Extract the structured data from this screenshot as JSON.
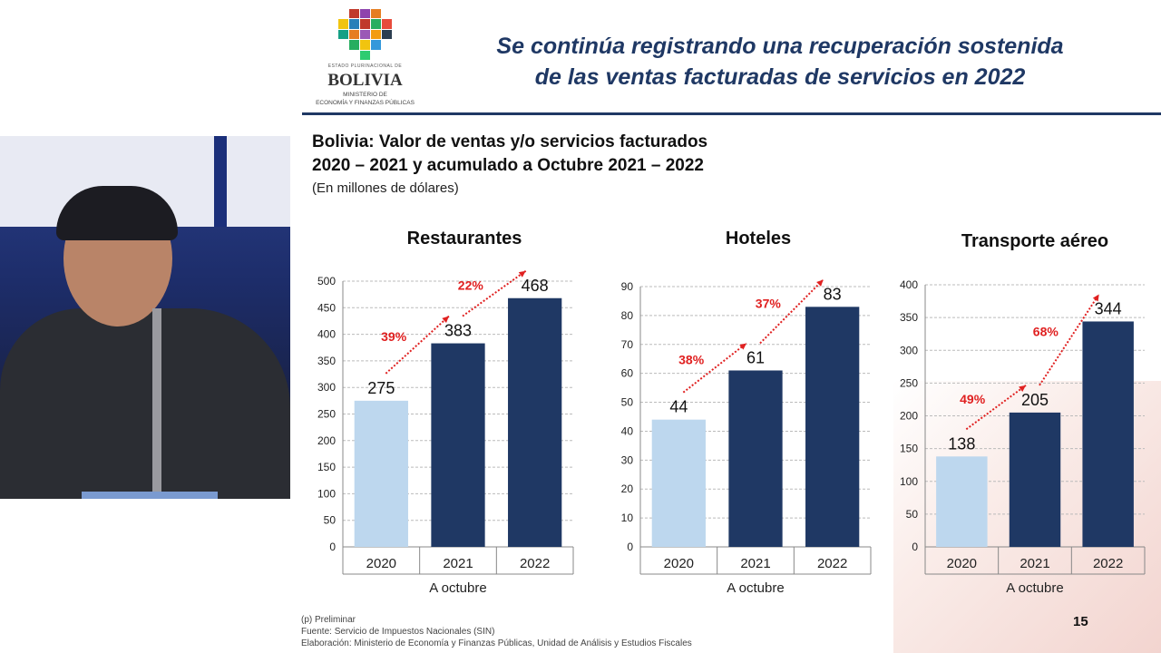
{
  "header": {
    "logo": {
      "state": "ESTADO PLURINACIONAL DE",
      "name": "BOLIVIA",
      "ministry_line1": "MINISTERIO DE",
      "ministry_line2": "ECONOMÍA Y FINANZAS PÚBLICAS"
    },
    "title_line1": "Se continúa registrando una recuperación sostenida",
    "title_line2": "de las ventas facturadas de servicios en 2022"
  },
  "slide": {
    "subtitle_line1": "Bolivia: Valor de ventas y/o servicios facturados",
    "subtitle_line2": "2020 – 2021 y acumulado a Octubre 2021 – 2022",
    "unit": "(En millones de dólares)",
    "footer": [
      "(p) Preliminar",
      "Fuente: Servicio de Impuestos Nacionales (SIN)",
      "Elaboración: Ministerio de Economía  y Finanzas Públicas, Unidad de Análisis y Estudios Fiscales"
    ],
    "page_number": "15"
  },
  "colors": {
    "bar_2020": "#bdd7ee",
    "bar_other": "#1f3864",
    "growth": "#e02020",
    "title": "#1f3864"
  },
  "chart_data": [
    {
      "type": "bar",
      "title": "Restaurantes",
      "categories": [
        "2020",
        "2021",
        "2022"
      ],
      "values": [
        275,
        383,
        468
      ],
      "data_labels": [
        "275",
        "383",
        "468"
      ],
      "growth_labels": [
        "39%",
        "22%"
      ],
      "group_label": "A octubre",
      "ylim": [
        0,
        500
      ],
      "yticks": [
        0,
        50,
        100,
        150,
        200,
        250,
        300,
        350,
        400,
        450,
        500
      ],
      "grid": true
    },
    {
      "type": "bar",
      "title": "Hoteles",
      "categories": [
        "2020",
        "2021",
        "2022"
      ],
      "values": [
        44,
        61,
        83
      ],
      "data_labels": [
        "44",
        "61",
        "83"
      ],
      "growth_labels": [
        "38%",
        "37%"
      ],
      "group_label": "A octubre",
      "ylim": [
        0,
        90
      ],
      "yticks": [
        0,
        10,
        20,
        30,
        40,
        50,
        60,
        70,
        80,
        90
      ],
      "grid": true
    },
    {
      "type": "bar",
      "title": "Transporte aéreo",
      "categories": [
        "2020",
        "2021",
        "2022"
      ],
      "values": [
        138,
        205,
        344
      ],
      "data_labels": [
        "138",
        "205",
        "344"
      ],
      "growth_labels": [
        "49%",
        "68%"
      ],
      "group_label": "A octubre",
      "ylim": [
        0,
        400
      ],
      "yticks": [
        0,
        50,
        100,
        150,
        200,
        250,
        300,
        350,
        400
      ],
      "grid": true
    }
  ]
}
